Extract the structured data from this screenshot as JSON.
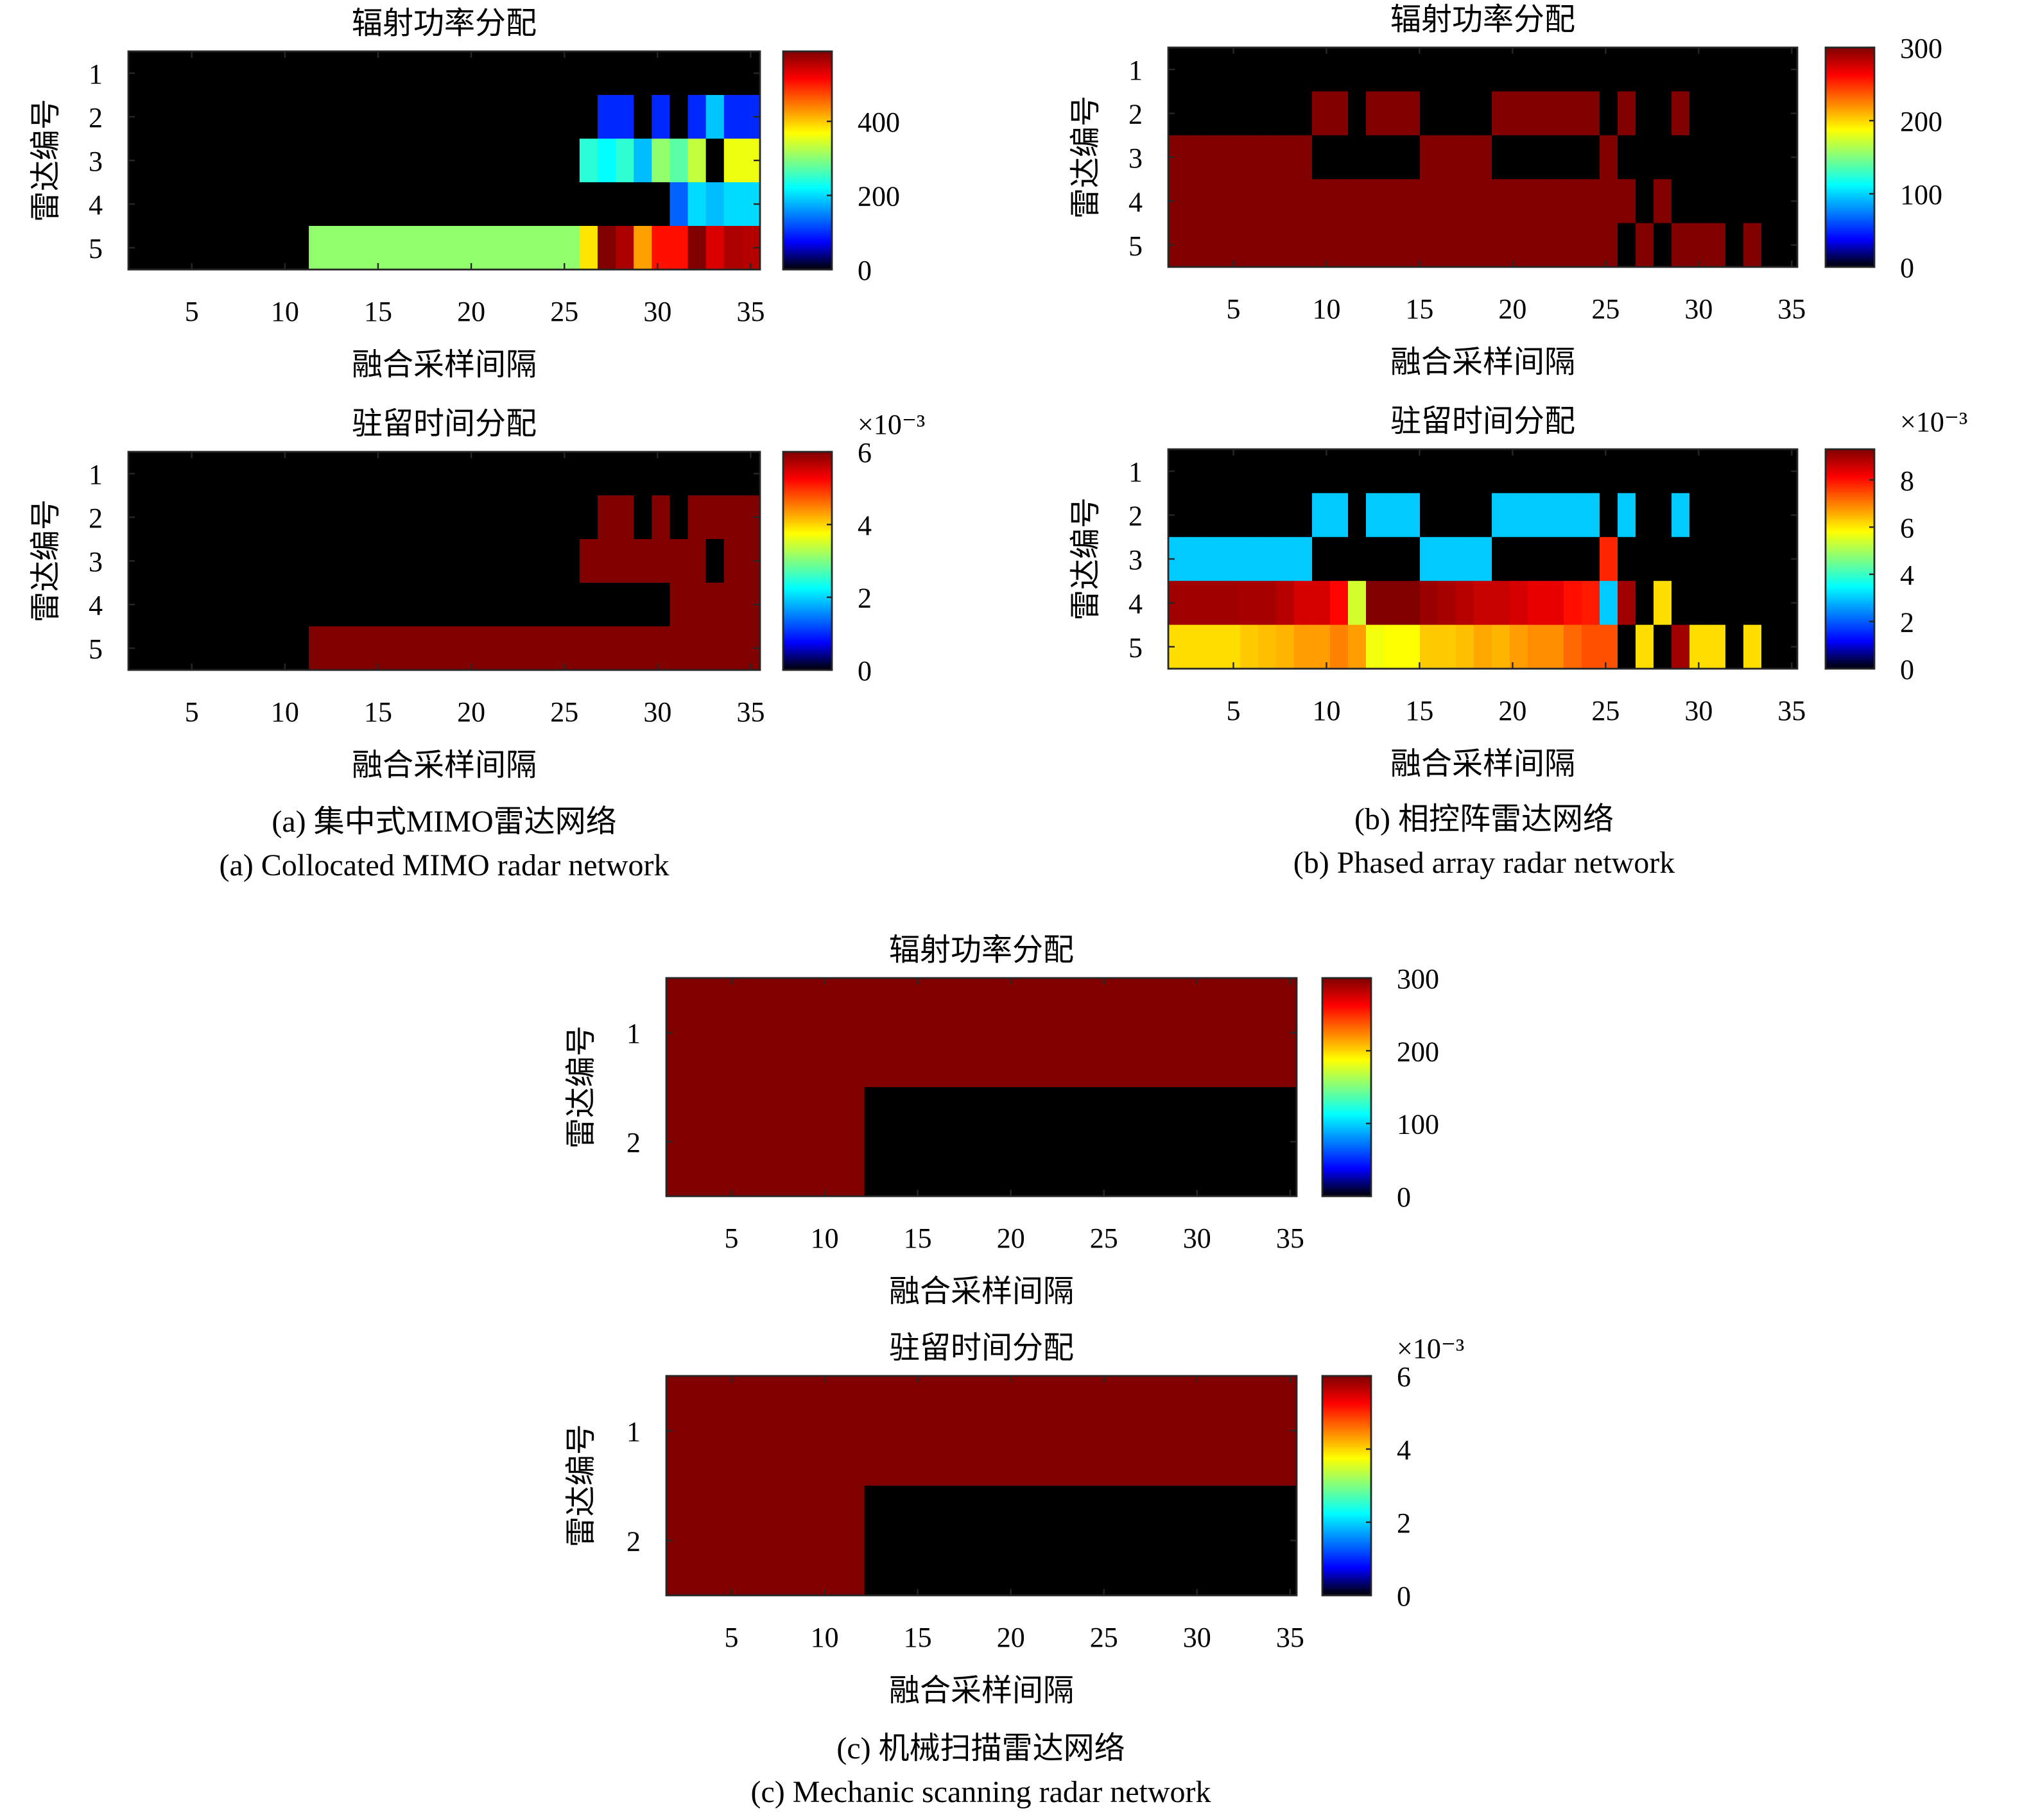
{
  "captions": {
    "a_cn": "(a) 集中式MIMO雷达网络",
    "a_en": "(a) Collocated MIMO radar network",
    "b_cn": "(b) 相控阵雷达网络",
    "b_en": "(b) Phased array radar network",
    "c_cn": "(c) 机械扫描雷达网络",
    "c_en": "(c) Mechanic scanning radar network"
  },
  "chart_data": [
    {
      "type": "heatmap",
      "panel": "a",
      "title": "辐射功率分配",
      "xlabel": "融合采样间隔",
      "ylabel": "雷达编号",
      "xticks": [
        "5",
        "10",
        "15",
        "20",
        "25",
        "30",
        "35"
      ],
      "xlim": [
        1.6,
        35.5
      ],
      "yticks": [
        "1",
        "2",
        "3",
        "4",
        "5"
      ],
      "colormap": "jet",
      "clim": [
        0,
        589
      ],
      "colorbar_ticks": [
        "0",
        "200",
        "400"
      ],
      "colorbar_multiplier": "",
      "z": [
        [
          0,
          0,
          0,
          0,
          0,
          0,
          0,
          0,
          0,
          0,
          0,
          0,
          0,
          0,
          0,
          0,
          0,
          0,
          0,
          0,
          0,
          0,
          0,
          0,
          0,
          0,
          0,
          0,
          0,
          0,
          0,
          0,
          0,
          0,
          0
        ],
        [
          0,
          0,
          0,
          0,
          0,
          0,
          0,
          0,
          0,
          0,
          0,
          0,
          0,
          0,
          0,
          0,
          0,
          0,
          0,
          0,
          0,
          0,
          0,
          0,
          0,
          0,
          97,
          97,
          0,
          97,
          0,
          97,
          188,
          97,
          97
        ],
        [
          0,
          0,
          0,
          0,
          0,
          0,
          0,
          0,
          0,
          0,
          0,
          0,
          0,
          0,
          0,
          0,
          0,
          0,
          0,
          0,
          0,
          0,
          0,
          0,
          0,
          244,
          221,
          247,
          183,
          305,
          273,
          333,
          0,
          359,
          359
        ],
        [
          0,
          0,
          0,
          0,
          0,
          0,
          0,
          0,
          0,
          0,
          0,
          0,
          0,
          0,
          0,
          0,
          0,
          0,
          0,
          0,
          0,
          0,
          0,
          0,
          0,
          0,
          0,
          0,
          0,
          0,
          131,
          200,
          183,
          200,
          200
        ],
        [
          0,
          0,
          0,
          0,
          0,
          0,
          0,
          0,
          0,
          0,
          305,
          305,
          305,
          305,
          305,
          305,
          305,
          305,
          305,
          305,
          305,
          305,
          305,
          305,
          305,
          383,
          589,
          564,
          423,
          507,
          507,
          589,
          536,
          564,
          558
        ]
      ]
    },
    {
      "type": "heatmap",
      "panel": "a",
      "title": "驻留时间分配",
      "xlabel": "融合采样间隔",
      "ylabel": "雷达编号",
      "xticks": [
        "5",
        "10",
        "15",
        "20",
        "25",
        "30",
        "35"
      ],
      "xlim": [
        1.6,
        35.5
      ],
      "yticks": [
        "1",
        "2",
        "3",
        "4",
        "5"
      ],
      "colormap": "jet",
      "clim": [
        0,
        6
      ],
      "colorbar_ticks": [
        "0",
        "2",
        "4",
        "6"
      ],
      "colorbar_multiplier": "×10⁻³",
      "z": [
        [
          0,
          0,
          0,
          0,
          0,
          0,
          0,
          0,
          0,
          0,
          0,
          0,
          0,
          0,
          0,
          0,
          0,
          0,
          0,
          0,
          0,
          0,
          0,
          0,
          0,
          0,
          0,
          0,
          0,
          0,
          0,
          0,
          0,
          0,
          0
        ],
        [
          0,
          0,
          0,
          0,
          0,
          0,
          0,
          0,
          0,
          0,
          0,
          0,
          0,
          0,
          0,
          0,
          0,
          0,
          0,
          0,
          0,
          0,
          0,
          0,
          0,
          0,
          6,
          6,
          0,
          6,
          0,
          6,
          6,
          6,
          6
        ],
        [
          0,
          0,
          0,
          0,
          0,
          0,
          0,
          0,
          0,
          0,
          0,
          0,
          0,
          0,
          0,
          0,
          0,
          0,
          0,
          0,
          0,
          0,
          0,
          0,
          0,
          6,
          6,
          6,
          6,
          6,
          6,
          6,
          0,
          6,
          6
        ],
        [
          0,
          0,
          0,
          0,
          0,
          0,
          0,
          0,
          0,
          0,
          0,
          0,
          0,
          0,
          0,
          0,
          0,
          0,
          0,
          0,
          0,
          0,
          0,
          0,
          0,
          0,
          0,
          0,
          0,
          0,
          6,
          6,
          6,
          6,
          6
        ],
        [
          0,
          0,
          0,
          0,
          0,
          0,
          0,
          0,
          0,
          0,
          6,
          6,
          6,
          6,
          6,
          6,
          6,
          6,
          6,
          6,
          6,
          6,
          6,
          6,
          6,
          6,
          6,
          6,
          6,
          6,
          6,
          6,
          6,
          6,
          6
        ]
      ]
    },
    {
      "type": "heatmap",
      "panel": "b",
      "title": "辐射功率分配",
      "xlabel": "融合采样间隔",
      "ylabel": "雷达编号",
      "xticks": [
        "5",
        "10",
        "15",
        "20",
        "25",
        "30",
        "35"
      ],
      "xlim": [
        1.5,
        35.3
      ],
      "yticks": [
        "1",
        "2",
        "3",
        "4",
        "5"
      ],
      "colormap": "jet",
      "clim": [
        0,
        300
      ],
      "colorbar_ticks": [
        "0",
        "100",
        "200",
        "300"
      ],
      "colorbar_multiplier": "",
      "z": [
        [
          0,
          0,
          0,
          0,
          0,
          0,
          0,
          0,
          0,
          0,
          0,
          0,
          0,
          0,
          0,
          0,
          0,
          0,
          0,
          0,
          0,
          0,
          0,
          0,
          0,
          0,
          0,
          0,
          0,
          0,
          0,
          0,
          0,
          0,
          0
        ],
        [
          0,
          0,
          0,
          0,
          0,
          0,
          0,
          0,
          300,
          300,
          0,
          300,
          300,
          300,
          0,
          0,
          0,
          0,
          300,
          300,
          300,
          300,
          300,
          300,
          0,
          300,
          0,
          0,
          300,
          0,
          0,
          0,
          0,
          0,
          0
        ],
        [
          300,
          300,
          300,
          300,
          300,
          300,
          300,
          300,
          0,
          0,
          0,
          0,
          0,
          0,
          300,
          300,
          300,
          300,
          0,
          0,
          0,
          0,
          0,
          0,
          300,
          0,
          0,
          0,
          0,
          0,
          0,
          0,
          0,
          0,
          0
        ],
        [
          300,
          300,
          300,
          300,
          300,
          300,
          300,
          300,
          300,
          300,
          300,
          300,
          300,
          300,
          300,
          300,
          300,
          300,
          300,
          300,
          300,
          300,
          300,
          300,
          300,
          300,
          0,
          300,
          0,
          0,
          0,
          0,
          0,
          0,
          0
        ],
        [
          300,
          300,
          300,
          300,
          300,
          300,
          300,
          300,
          300,
          300,
          300,
          300,
          300,
          300,
          300,
          300,
          300,
          300,
          300,
          300,
          300,
          300,
          300,
          300,
          300,
          0,
          300,
          0,
          300,
          300,
          300,
          0,
          300,
          0,
          0
        ]
      ]
    },
    {
      "type": "heatmap",
      "panel": "b",
      "title": "驻留时间分配",
      "xlabel": "融合采样间隔",
      "ylabel": "雷达编号",
      "xticks": [
        "5",
        "10",
        "15",
        "20",
        "25",
        "30",
        "35"
      ],
      "xlim": [
        1.5,
        35.3
      ],
      "yticks": [
        "1",
        "2",
        "3",
        "4",
        "5"
      ],
      "colormap": "jet",
      "clim": [
        0,
        9.3
      ],
      "colorbar_ticks": [
        "0",
        "2",
        "4",
        "6",
        "8"
      ],
      "colorbar_multiplier": "×10⁻³",
      "z": [
        [
          0,
          0,
          0,
          0,
          0,
          0,
          0,
          0,
          0,
          0,
          0,
          0,
          0,
          0,
          0,
          0,
          0,
          0,
          0,
          0,
          0,
          0,
          0,
          0,
          0,
          0,
          0,
          0,
          0,
          0,
          0,
          0,
          0,
          0,
          0
        ],
        [
          0,
          0,
          0,
          0,
          0,
          0,
          0,
          0,
          3.0,
          3.0,
          0,
          3.0,
          3.0,
          3.0,
          0,
          0,
          0,
          0,
          3.0,
          3.0,
          3.0,
          3.0,
          3.0,
          3.0,
          0,
          3.0,
          0,
          0,
          3.0,
          0,
          0,
          0,
          0,
          0,
          0
        ],
        [
          3.0,
          3.0,
          3.0,
          3.0,
          3.0,
          3.0,
          3.0,
          3.0,
          0,
          0,
          0,
          0,
          0,
          0,
          3.0,
          3.0,
          3.0,
          3.0,
          0,
          0,
          0,
          0,
          0,
          0,
          7.8,
          0,
          0,
          0,
          0,
          0,
          0,
          0,
          0,
          0,
          0
        ],
        [
          9.0,
          9.0,
          9.0,
          9.0,
          8.95,
          8.95,
          8.8,
          8.5,
          8.5,
          8.1,
          5.4,
          9.3,
          9.3,
          9.3,
          9.05,
          8.95,
          8.8,
          8.65,
          8.65,
          8.5,
          8.35,
          8.35,
          8.0,
          7.9,
          3.0,
          9.0,
          0,
          6.1,
          0,
          0,
          0,
          0,
          0,
          0,
          0
        ],
        [
          6.1,
          6.1,
          6.1,
          6.1,
          6.3,
          6.4,
          6.5,
          6.7,
          6.7,
          6.95,
          6.7,
          5.7,
          5.8,
          5.8,
          6.3,
          6.3,
          6.4,
          6.6,
          6.5,
          6.7,
          6.85,
          6.85,
          7.2,
          7.4,
          7.4,
          0,
          6.1,
          0,
          9.0,
          6.1,
          6.1,
          0,
          6.1,
          0,
          0
        ]
      ]
    },
    {
      "type": "heatmap",
      "panel": "c",
      "title": "辐射功率分配",
      "xlabel": "融合采样间隔",
      "ylabel": "雷达编号",
      "xticks": [
        "5",
        "10",
        "15",
        "20",
        "25",
        "30",
        "35"
      ],
      "xlim": [
        1.5,
        35.35
      ],
      "yticks": [
        "1",
        "2"
      ],
      "colormap": "jet",
      "clim": [
        0,
        300
      ],
      "colorbar_ticks": [
        "0",
        "100",
        "200",
        "300"
      ],
      "colorbar_multiplier": "",
      "z": [
        [
          300,
          300,
          300,
          300,
          300,
          300,
          300,
          300,
          300,
          300,
          300,
          300,
          300,
          300,
          300,
          300,
          300,
          300,
          300,
          300,
          300,
          300,
          300,
          300,
          300,
          300,
          300,
          300,
          300,
          300,
          300,
          300,
          300,
          300,
          300
        ],
        [
          300,
          300,
          300,
          300,
          300,
          300,
          300,
          300,
          300,
          300,
          300,
          0,
          0,
          0,
          0,
          0,
          0,
          0,
          0,
          0,
          0,
          0,
          0,
          0,
          0,
          0,
          0,
          0,
          0,
          0,
          0,
          0,
          0,
          0,
          0
        ]
      ]
    },
    {
      "type": "heatmap",
      "panel": "c",
      "title": "驻留时间分配",
      "xlabel": "融合采样间隔",
      "ylabel": "雷达编号",
      "xticks": [
        "5",
        "10",
        "15",
        "20",
        "25",
        "30",
        "35"
      ],
      "xlim": [
        1.5,
        35.35
      ],
      "yticks": [
        "1",
        "2"
      ],
      "colormap": "jet",
      "clim": [
        0,
        6
      ],
      "colorbar_ticks": [
        "0",
        "2",
        "4",
        "6"
      ],
      "colorbar_multiplier": "×10⁻³",
      "z": [
        [
          6,
          6,
          6,
          6,
          6,
          6,
          6,
          6,
          6,
          6,
          6,
          6,
          6,
          6,
          6,
          6,
          6,
          6,
          6,
          6,
          6,
          6,
          6,
          6,
          6,
          6,
          6,
          6,
          6,
          6,
          6,
          6,
          6,
          6,
          6
        ],
        [
          6,
          6,
          6,
          6,
          6,
          6,
          6,
          6,
          6,
          6,
          6,
          0,
          0,
          0,
          0,
          0,
          0,
          0,
          0,
          0,
          0,
          0,
          0,
          0,
          0,
          0,
          0,
          0,
          0,
          0,
          0,
          0,
          0,
          0,
          0
        ]
      ]
    }
  ]
}
